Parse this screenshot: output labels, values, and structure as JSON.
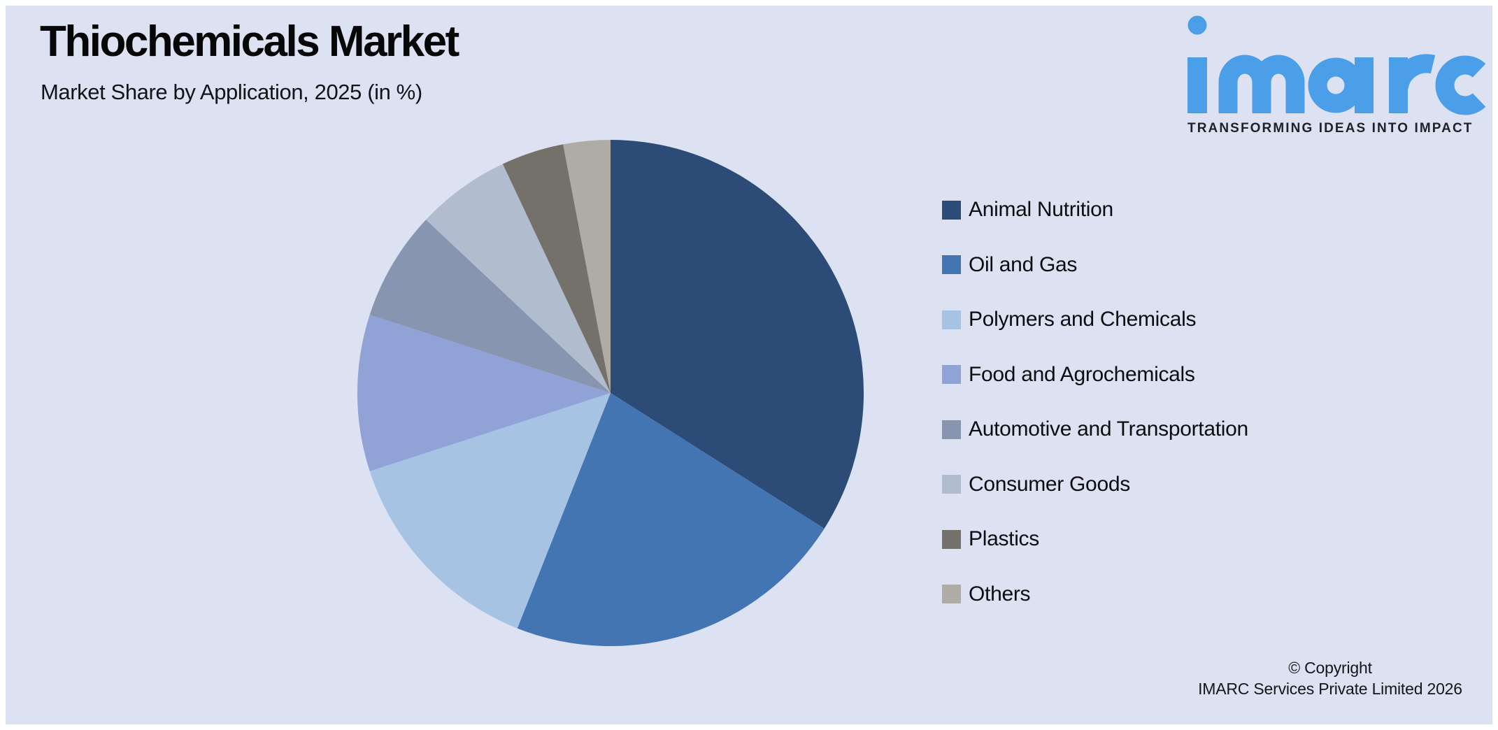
{
  "page": {
    "frame_color": "#FFFFFF",
    "panel_background": "#DCE2F2"
  },
  "logo": {
    "brand": "imarc",
    "brand_color": "#4A9FE8",
    "tagline": "TRANSFORMING IDEAS INTO IMPACT",
    "tagline_color": "#1D2129"
  },
  "footer": {
    "copyright_line1": "© Copyright",
    "copyright_line2": "IMARC Services Private Limited 2026"
  },
  "chart_data": {
    "type": "pie",
    "title": "Thiochemicals Market",
    "subtitle": "Market Share by Application, 2025 (in %)",
    "unit": "%",
    "start_angle_deg": 0,
    "direction": "clockwise",
    "legend_position": "right",
    "slice_labels_visible": false,
    "categories": [
      "Animal Nutrition",
      "Oil and Gas",
      "Polymers and Chemicals",
      "Food and Agrochemicals",
      "Automotive and Transportation",
      "Consumer Goods",
      "Plastics",
      "Others"
    ],
    "values": [
      34,
      22,
      14,
      10,
      7,
      6,
      4,
      3
    ],
    "colors": [
      "#2C4B77",
      "#4375B2",
      "#A7C3E4",
      "#90A2D6",
      "#8795B1",
      "#B1BDCE",
      "#74706A",
      "#AFACA5"
    ]
  }
}
